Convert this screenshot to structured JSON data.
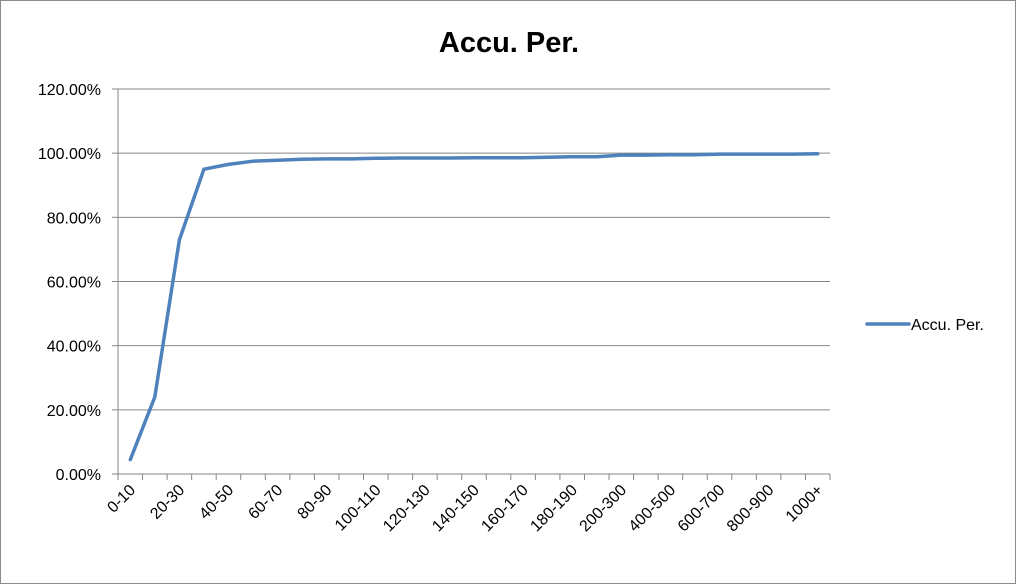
{
  "chart_data": {
    "type": "line",
    "title": "Accu. Per.",
    "xlabel": "",
    "ylabel": "",
    "categories": [
      "0-10",
      "10-20",
      "20-30",
      "30-40",
      "40-50",
      "50-60",
      "60-70",
      "70-80",
      "80-90",
      "90-100",
      "100-110",
      "110-120",
      "120-130",
      "130-140",
      "140-150",
      "150-160",
      "160-170",
      "170-180",
      "180-190",
      "190-200",
      "200-300",
      "300-400",
      "400-500",
      "500-600",
      "600-700",
      "700-800",
      "800-900",
      "900-1000",
      "1000+"
    ],
    "tick_labels_shown": [
      "0-10",
      "20-30",
      "40-50",
      "60-70",
      "80-90",
      "100-110",
      "120-130",
      "140-150",
      "160-170",
      "180-190",
      "200-300",
      "400-500",
      "600-700",
      "800-900",
      "1000+"
    ],
    "series": [
      {
        "name": "Accu. Per.",
        "color": "#4f81bd",
        "values": [
          0.045,
          0.24,
          0.73,
          0.95,
          0.965,
          0.975,
          0.978,
          0.981,
          0.982,
          0.982,
          0.984,
          0.985,
          0.985,
          0.985,
          0.986,
          0.986,
          0.986,
          0.987,
          0.989,
          0.989,
          0.994,
          0.994,
          0.995,
          0.995,
          0.997,
          0.997,
          0.997,
          0.997,
          0.998
        ]
      }
    ],
    "y_ticks": [
      "0.00%",
      "20.00%",
      "40.00%",
      "60.00%",
      "80.00%",
      "100.00%",
      "120.00%"
    ],
    "ylim": [
      0,
      1.2
    ],
    "grid": true,
    "legend_position": "right",
    "legend_entry": "Accu. Per."
  }
}
